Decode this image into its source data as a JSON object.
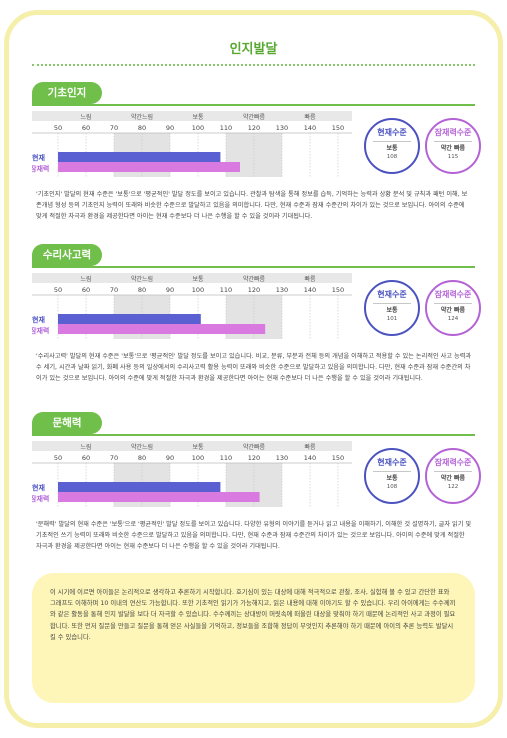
{
  "page": {
    "title": "인지발달"
  },
  "scale": {
    "zones": [
      "느림",
      "약간느림",
      "보통",
      "약간빠름",
      "빠름"
    ],
    "ticks": [
      50,
      60,
      70,
      80,
      90,
      100,
      110,
      120,
      130,
      140,
      150
    ]
  },
  "legend": {
    "current": "현재",
    "potential": "잠재력"
  },
  "labels": {
    "current_title": "현재수준",
    "potential_title": "잠재력수준"
  },
  "colors": {
    "current": "#5a5fd1",
    "potential": "#d87ae0",
    "accent": "#6fbf4a"
  },
  "sections": [
    {
      "name": "기초인지",
      "current": {
        "level": "보통",
        "value": "108"
      },
      "potential": {
        "level": "약간 빠름",
        "value": "115"
      },
      "description": "'기초인지' 발달의 현재 수준은 '보통'으로 '평균적인' 발달 정도를 보이고 있습니다. 관찰과 탐색을 통해 정보를 습득, 기억하는 능력과 상황 분석 및 규칙과 패턴 이해, 보존개념 형성 등의 기초인지 능력이 또래와 비슷한 수준으로 발달하고 있음을 의미합니다. 다만, 현재 수준과 잠재 수준간의 차이가 있는 것으로 보입니다. 아이의 수준에 맞게 적절한 자극과 환경을 제공한다면 아이는 현재 수준보다 더 나은 수행을 할 수 있을 것이라 기대됩니다."
    },
    {
      "name": "수리사고력",
      "current": {
        "level": "보통",
        "value": "101"
      },
      "potential": {
        "level": "약간 빠름",
        "value": "124"
      },
      "description": "'수리사고력' 발달의 현재 수준은 '보통'으로 '평균적인' 발달 정도를 보이고 있습니다. 비교, 분류, 부분과 전체 등의 개념을 이해하고 적용할 수 있는 논리적인 사고 능력과 수 세기, 시간과 날짜 읽기, 화폐 사용 등의 일상에서의 수리사고력 활용 능력이 또래와 비슷한 수준으로 발달하고 있음을 의미합니다. 다만, 현재 수준과 잠재 수준간의 차이가 있는 것으로 보입니다. 아이의 수준에 맞게 적절한 자극과 환경을 제공한다면 아이는 현재 수준보다 더 나은 수행을 할 수 있을 것이라 기대됩니다."
    },
    {
      "name": "문해력",
      "current": {
        "level": "보통",
        "value": "108"
      },
      "potential": {
        "level": "약간 빠름",
        "value": "122"
      },
      "description": "'문해력' 발달의 현재 수준은 '보통'으로 '평균적인' 발달 정도를 보이고 있습니다. 다양한 유형의 이야기를 듣거나 읽고 내용을 이해하기, 이해한 것 설명하기, 글자 읽기 및 기초적인 쓰기 능력이 또래와 비슷한 수준으로 발달하고 있음을 의미합니다. 다만, 현재 수준과 잠재 수준간의 차이가 있는 것으로 보입니다. 아이의 수준에 맞게 적절한 자극과 환경을 제공한다면 아이는 현재 수준보다 더 나은 수행을 할 수 있을 것이라 기대됩니다."
    }
  ],
  "note": "이 시기에 이르면 아이들은 논리적으로 생각하고 추론하기 시작합니다. 호기심이 있는 대상에 대해 적극적으로 관찰, 조사, 실험해 볼 수 있고 간단한 표와 그래프도 이해하며 10 이내의 연산도 가능합니다. 또한 기초적인 읽기가 가능해지고, 읽은 내용에 대해 이야기도 할 수 있습니다. 우리 아이에게는 수수께끼와 같은 활동을 통해 인지 발달을 보다 더 자극할 수 있습니다. 수수께끼는 상대방이 머릿속에 떠올린 대상을 맞춰야 하기 때문에 논리적인 사고 과정이 필요합니다. 또한 먼저 질문을 만들고 질문을 통해 얻은 사실들을 기억하고, 정보들을 조합해 정답이 무엇인지 추론해야 하기 때문에 아이의 추론 능력도 발달시킬 수 있습니다.",
  "chart_data": [
    {
      "type": "bar",
      "title": "기초인지",
      "categories": [
        "현재",
        "잠재력"
      ],
      "values": [
        108,
        115
      ],
      "xlim": [
        50,
        150
      ]
    },
    {
      "type": "bar",
      "title": "수리사고력",
      "categories": [
        "현재",
        "잠재력"
      ],
      "values": [
        101,
        124
      ],
      "xlim": [
        50,
        150
      ]
    },
    {
      "type": "bar",
      "title": "문해력",
      "categories": [
        "현재",
        "잠재력"
      ],
      "values": [
        108,
        122
      ],
      "xlim": [
        50,
        150
      ]
    }
  ]
}
